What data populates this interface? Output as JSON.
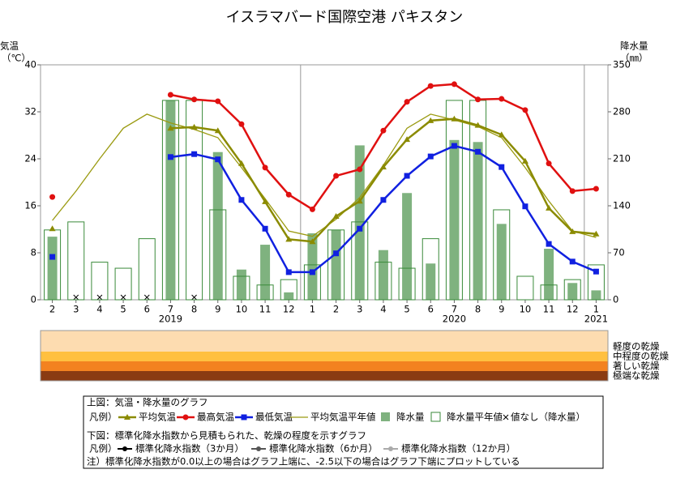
{
  "chart_data": {
    "type": "combo",
    "title": "イスラマバード国際空港 パキスタン",
    "y_label": [
      "気温",
      "（℃）"
    ],
    "y2_label": [
      "降水量",
      "（㎜）"
    ],
    "categories": [
      "2",
      "3",
      "4",
      "5",
      "6",
      "7",
      "8",
      "9",
      "10",
      "11",
      "12",
      "1",
      "2",
      "3",
      "4",
      "5",
      "6",
      "7",
      "8",
      "9",
      "10",
      "11",
      "12",
      "1"
    ],
    "years": [
      {
        "label": "2019",
        "category": 5
      },
      {
        "label": "2020",
        "category": 17
      },
      {
        "label": "2021",
        "category": 23
      }
    ],
    "ylim": [
      0,
      40
    ],
    "yticks": [
      0,
      8,
      16,
      24,
      32,
      40
    ],
    "y2lim": [
      0,
      350
    ],
    "y2ticks": [
      0,
      70,
      140,
      210,
      280,
      350
    ],
    "series": [
      {
        "name": "降水量",
        "kind": "bar",
        "axis": "y2",
        "color": "#7fb27f",
        "values": [
          94,
          null,
          null,
          null,
          null,
          297,
          null,
          220,
          45,
          82,
          11,
          99,
          104,
          230,
          74,
          159,
          54,
          238,
          235,
          113,
          0,
          76,
          25,
          14
        ]
      },
      {
        "name": "降水量平年値",
        "kind": "outline",
        "axis": "y2",
        "color": "#3a8a3a",
        "values": [
          104,
          116,
          56,
          47,
          91,
          297,
          297,
          134,
          35,
          22,
          30,
          52,
          104,
          116,
          56,
          47,
          91,
          297,
          297,
          134,
          35,
          22,
          30,
          52
        ]
      },
      {
        "name": "平均気温平年値",
        "kind": "line",
        "color": "#9a9a10",
        "width": 1.3,
        "marker": "none",
        "values": [
          13.5,
          18.5,
          24.0,
          29.2,
          31.6,
          30.1,
          29.0,
          27.6,
          22.5,
          17.2,
          11.7,
          10.8,
          13.7,
          17.4,
          22.9,
          29.2,
          31.6,
          30.6,
          29.5,
          27.6,
          22.5,
          16.8,
          11.7,
          10.6
        ]
      },
      {
        "name": "平均気温",
        "kind": "line",
        "color": "#8b8b00",
        "width": 2.5,
        "marker": "triangle",
        "values": [
          12.1,
          null,
          null,
          null,
          null,
          29.2,
          29.4,
          28.8,
          23.2,
          16.7,
          10.3,
          9.9,
          14.2,
          16.8,
          22.6,
          27.3,
          30.5,
          30.8,
          29.7,
          28.1,
          23.6,
          15.6,
          11.6,
          11.2
        ]
      },
      {
        "name": "最高気温",
        "kind": "line",
        "color": "#e01010",
        "width": 2.5,
        "marker": "circle",
        "values": [
          17.5,
          null,
          null,
          null,
          null,
          34.9,
          34.1,
          33.8,
          29.9,
          22.5,
          17.9,
          15.4,
          21.1,
          22.2,
          28.8,
          33.7,
          36.4,
          36.7,
          34.1,
          34.2,
          32.3,
          23.2,
          18.5,
          18.9
        ]
      },
      {
        "name": "最低気温",
        "kind": "line",
        "color": "#1020e0",
        "width": 2.5,
        "marker": "square",
        "values": [
          7.3,
          null,
          null,
          null,
          null,
          24.3,
          24.8,
          23.9,
          17.0,
          12.1,
          4.7,
          4.7,
          7.9,
          12.1,
          17.0,
          21.1,
          24.4,
          26.2,
          25.2,
          22.6,
          15.9,
          9.5,
          6.5,
          4.8
        ]
      }
    ],
    "missing_label": "値なし（降水量）"
  },
  "drought_panel": {
    "levels": [
      {
        "label": "軽度の乾燥",
        "color": "#fddcb0"
      },
      {
        "label": "中程度の乾燥",
        "color": "#ffc040"
      },
      {
        "label": "著しい乾燥",
        "color": "#f38220"
      },
      {
        "label": "極端な乾燥",
        "color": "#8a3b12"
      }
    ]
  },
  "legend": {
    "upper": "上図：気温・降水量のグラフ",
    "key": "凡例）",
    "lower": "下図：標準化降水指数から見積もられた、乾燥の程度を示すグラフ",
    "spi": [
      {
        "name": "標準化降水指数（3か月）",
        "color": "#000000"
      },
      {
        "name": "標準化降水指数（6か月）",
        "color": "#555555"
      },
      {
        "name": "標準化降水指数（12か月）",
        "color": "#aaaaaa"
      }
    ],
    "note": "注）標準化降水指数が0.0以上の場合はグラフ上端に、-2.5以下の場合はグラフ下端にプロットしている"
  }
}
